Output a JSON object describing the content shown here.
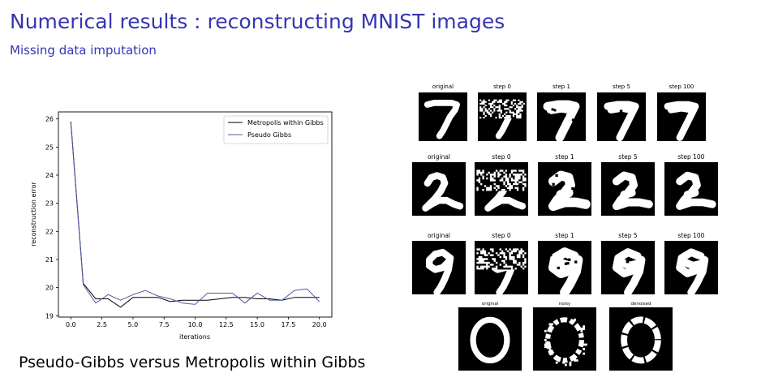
{
  "slide": {
    "title": "Numerical results : reconstructing MNIST images",
    "subtitle": "Missing data imputation",
    "caption": "Pseudo-Gibbs versus Metropolis within Gibbs"
  },
  "chart_data": {
    "type": "line",
    "xlabel": "iterations",
    "ylabel": "reconstruction error",
    "xlim": [
      -1,
      21
    ],
    "ylim": [
      18.95,
      26.25
    ],
    "xticks": [
      0.0,
      2.5,
      5.0,
      7.5,
      10.0,
      12.5,
      15.0,
      17.5,
      20.0
    ],
    "xtick_labels": [
      "0.0",
      "2.5",
      "5.0",
      "7.5",
      "10.0",
      "12.5",
      "15.0",
      "17.5",
      "20.0"
    ],
    "yticks": [
      19,
      20,
      21,
      22,
      23,
      24,
      25,
      26
    ],
    "ytick_labels": [
      "19",
      "20",
      "21",
      "22",
      "23",
      "24",
      "25",
      "26"
    ],
    "legend_position": "top-right",
    "grid": false,
    "x": [
      0,
      1,
      2,
      3,
      4,
      5,
      6,
      7,
      8,
      9,
      10,
      11,
      12,
      13,
      14,
      15,
      16,
      17,
      18,
      19,
      20
    ],
    "series": [
      {
        "name": "Metropolis within Gibbs",
        "color": "#000000",
        "values": [
          25.9,
          20.15,
          19.6,
          19.6,
          19.3,
          19.65,
          19.65,
          19.65,
          19.5,
          19.55,
          19.55,
          19.55,
          19.6,
          19.65,
          19.65,
          19.6,
          19.6,
          19.55,
          19.65,
          19.65,
          19.65
        ]
      },
      {
        "name": "Pseudo Gibbs",
        "color": "#5058a8",
        "values": [
          25.85,
          20.1,
          19.45,
          19.75,
          19.55,
          19.75,
          19.9,
          19.7,
          19.6,
          19.45,
          19.4,
          19.8,
          19.8,
          19.8,
          19.45,
          19.8,
          19.55,
          19.55,
          19.9,
          19.95,
          19.5
        ]
      }
    ]
  },
  "mnist_figure": {
    "rows": [
      {
        "labels": [
          "original",
          "step 0",
          "step 1",
          "step 5",
          "step 100"
        ],
        "digit": "7"
      },
      {
        "labels": [
          "original",
          "step 0",
          "step 1",
          "step 5",
          "step 100"
        ],
        "digit": "2"
      },
      {
        "labels": [
          "original",
          "step 0",
          "step 1",
          "step 5",
          "step 100"
        ],
        "digit": "9"
      }
    ],
    "bottom_row": {
      "labels": [
        "original",
        "noisy",
        "denoised"
      ],
      "digit": "0"
    }
  }
}
